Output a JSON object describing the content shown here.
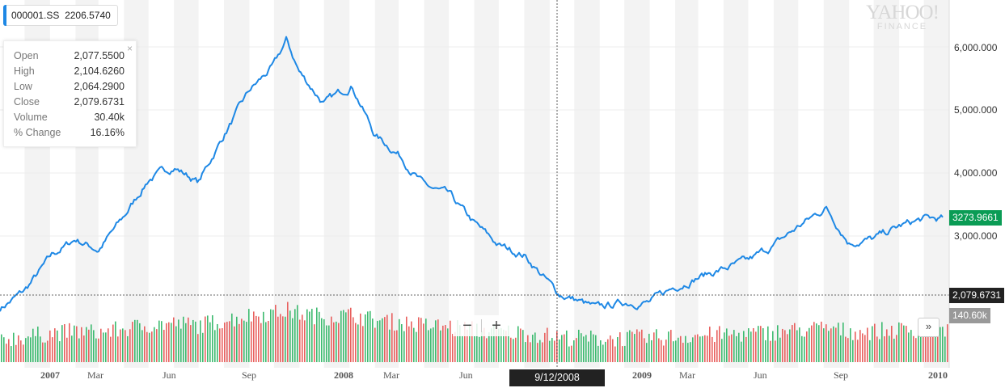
{
  "ticker": {
    "symbol": "000001.SS",
    "value": "2206.5740",
    "color": "#1e88e5"
  },
  "tooltip": {
    "rows": [
      {
        "label": "Open",
        "value": "2,077.5500"
      },
      {
        "label": "High",
        "value": "2,104.6260"
      },
      {
        "label": "Low",
        "value": "2,064.2900"
      },
      {
        "label": "Close",
        "value": "2,079.6731"
      },
      {
        "label": "Volume",
        "value": "30.40k"
      },
      {
        "label": "% Change",
        "value": "16.16%"
      }
    ],
    "close_glyph": "×"
  },
  "logo": {
    "top": "YAHOO!",
    "bottom": "FINANCE"
  },
  "zoom": {
    "out": "−",
    "in": "+"
  },
  "forward": "»",
  "y_axis_labels": [
    "6,000.000",
    "5,000.000",
    "4,000.000",
    "3,000.000"
  ],
  "flags": {
    "last_price": "3273.9661",
    "crosshair_price": "2,079.6731",
    "volume_max": "140.60k"
  },
  "x_axis": {
    "labels": [
      "2007",
      "Mar",
      "Jun",
      "Sep",
      "2008",
      "Mar",
      "Jun",
      "2009",
      "Mar",
      "Jun",
      "Sep",
      "2010"
    ],
    "year_labels": [
      "2007",
      "2008",
      "2009",
      "2010"
    ]
  },
  "crosshair_date": "9/12/2008",
  "colors": {
    "line": "#1e88e5",
    "vol_up": "#3cba6f",
    "vol_down": "#e8605e",
    "band": "#f3f3f3",
    "grid": "#ececec",
    "last_price": "#0a9c55"
  },
  "chart_data": {
    "type": "line",
    "x_start": "2006-11-01",
    "x_end": "2010-01-01",
    "ylim": [
      1500,
      6400
    ],
    "x": [
      "2006-11-01",
      "2006-12-01",
      "2007-01-04",
      "2007-02-01",
      "2007-03-01",
      "2007-04-01",
      "2007-05-01",
      "2007-06-01",
      "2007-07-01",
      "2007-08-01",
      "2007-09-01",
      "2007-10-01",
      "2007-10-16",
      "2007-11-01",
      "2007-12-01",
      "2008-01-04",
      "2008-02-01",
      "2008-03-01",
      "2008-04-01",
      "2008-05-01",
      "2008-06-01",
      "2008-07-01",
      "2008-08-01",
      "2008-09-12",
      "2008-10-01",
      "2008-10-28",
      "2008-12-01",
      "2009-01-01",
      "2009-02-01",
      "2009-03-01",
      "2009-04-01",
      "2009-05-01",
      "2009-06-01",
      "2009-07-01",
      "2009-08-04",
      "2009-09-01",
      "2009-10-01",
      "2009-11-01",
      "2009-12-01",
      "2010-01-01"
    ],
    "close": [
      1850,
      2130,
      2700,
      2950,
      2780,
      3300,
      3900,
      4100,
      3850,
      4600,
      5300,
      5700,
      6100,
      5600,
      5100,
      5400,
      4600,
      4300,
      3800,
      3650,
      3200,
      2850,
      2700,
      2079,
      2000,
      1850,
      1950,
      1950,
      2200,
      2350,
      2480,
      2600,
      2850,
      3150,
      3450,
      2900,
      2950,
      3150,
      3270,
      3274
    ],
    "series": [
      {
        "name": "000001.SS"
      }
    ],
    "volume_max": "140.60k",
    "grid": true
  }
}
